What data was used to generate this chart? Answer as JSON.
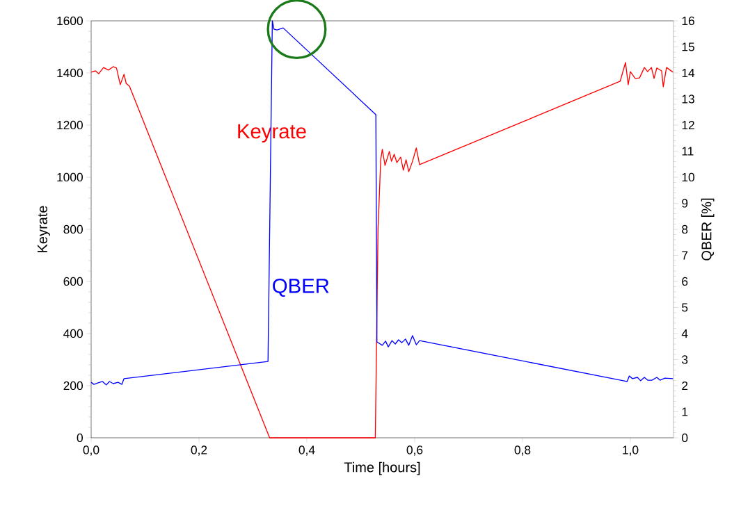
{
  "chart_data": {
    "type": "line",
    "xlabel": "Time [hours]",
    "ylabel": "Keyrate",
    "y2label": "QBER [%]",
    "xlim": [
      0,
      1.08
    ],
    "ylim": [
      0,
      1600
    ],
    "y2lim": [
      0,
      16
    ],
    "xticks": [
      {
        "value": 0,
        "label": "0,0"
      },
      {
        "value": 0.2,
        "label": "0,2"
      },
      {
        "value": 0.4,
        "label": "0,4"
      },
      {
        "value": 0.6,
        "label": "0,6"
      },
      {
        "value": 0.8,
        "label": "0,8"
      },
      {
        "value": 1.0,
        "label": "1,0"
      }
    ],
    "yticks": [
      0,
      200,
      400,
      600,
      800,
      1000,
      1200,
      1400,
      1600
    ],
    "y2ticks": [
      0,
      1,
      2,
      3,
      4,
      5,
      6,
      7,
      8,
      9,
      10,
      11,
      12,
      13,
      14,
      15,
      16
    ],
    "grid": false,
    "legend": false,
    "marker": "none",
    "line_style": "solid",
    "series": [
      {
        "name": "Keyrate",
        "color": "#ff0000",
        "x": [
          0.0,
          0.008,
          0.014,
          0.023,
          0.032,
          0.041,
          0.047,
          0.054,
          0.061,
          0.065,
          0.071,
          0.331,
          0.527,
          0.532,
          0.537,
          0.54,
          0.545,
          0.553,
          0.557,
          0.562,
          0.567,
          0.574,
          0.579,
          0.584,
          0.589,
          0.596,
          0.603,
          0.609,
          0.981,
          0.991,
          0.996,
          1.0,
          1.009,
          1.017,
          1.026,
          1.032,
          1.039,
          1.044,
          1.049,
          1.058,
          1.061,
          1.067,
          1.079
        ],
        "values": [
          1403,
          1408,
          1397,
          1421,
          1411,
          1424,
          1419,
          1355,
          1395,
          1360,
          1349,
          0,
          0,
          800,
          1067,
          1107,
          1045,
          1099,
          1061,
          1088,
          1056,
          1077,
          1027,
          1067,
          1021,
          1061,
          1112,
          1048,
          1368,
          1440,
          1355,
          1405,
          1379,
          1381,
          1421,
          1405,
          1421,
          1379,
          1419,
          1408,
          1347,
          1421,
          1403
        ]
      },
      {
        "name": "QBER",
        "color": "#0000ff",
        "axis": "y2",
        "x": [
          0.0,
          0.005,
          0.013,
          0.021,
          0.028,
          0.034,
          0.041,
          0.05,
          0.057,
          0.061,
          0.328,
          0.336,
          0.339,
          0.345,
          0.356,
          0.528,
          0.53,
          0.54,
          0.546,
          0.551,
          0.558,
          0.564,
          0.57,
          0.576,
          0.583,
          0.589,
          0.596,
          0.603,
          0.609,
          0.987,
          0.994,
          0.998,
          1.004,
          1.013,
          1.019,
          1.026,
          1.032,
          1.04,
          1.049,
          1.055,
          1.064,
          1.079
        ],
        "values": [
          2.13,
          2.05,
          2.11,
          2.16,
          2.03,
          2.16,
          2.08,
          2.13,
          2.05,
          2.27,
          2.93,
          16.0,
          15.68,
          15.65,
          15.73,
          12.4,
          3.68,
          3.55,
          3.71,
          3.49,
          3.73,
          3.6,
          3.76,
          3.65,
          3.79,
          3.55,
          3.92,
          3.57,
          3.73,
          2.19,
          2.16,
          2.37,
          2.27,
          2.32,
          2.19,
          2.32,
          2.21,
          2.21,
          2.32,
          2.21,
          2.29,
          2.27
        ]
      }
    ]
  }
}
